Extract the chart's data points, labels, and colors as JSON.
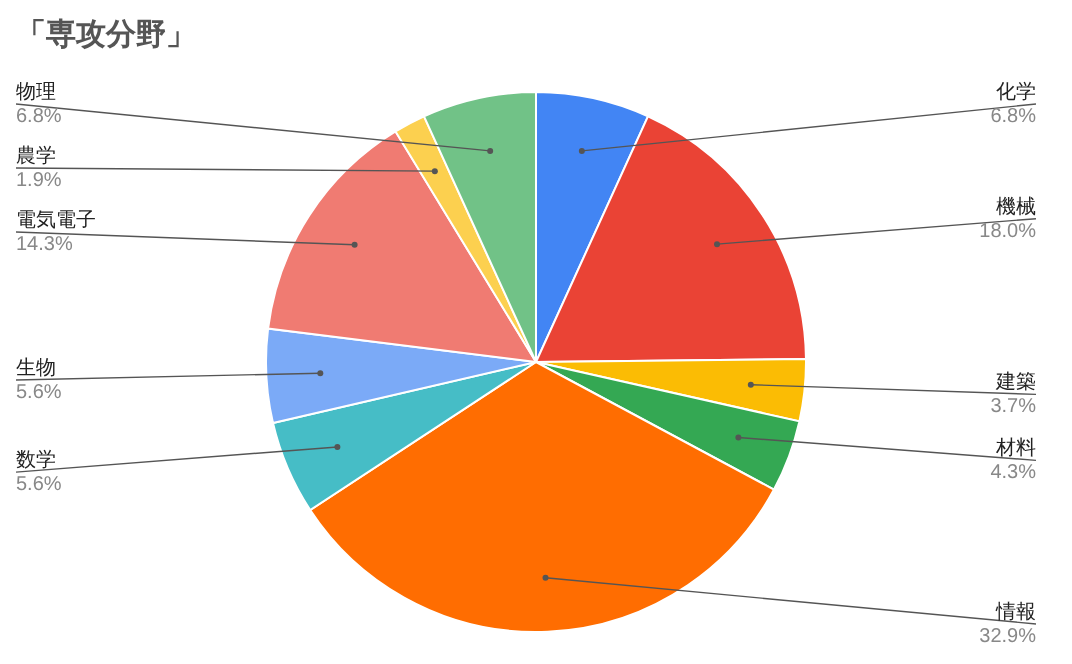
{
  "chart_data": {
    "type": "pie",
    "title": "「専攻分野」",
    "categories": [
      "化学",
      "機械",
      "建築",
      "材料",
      "情報",
      "数学",
      "生物",
      "電気電子",
      "農学",
      "物理"
    ],
    "values": [
      6.8,
      18.0,
      3.7,
      4.3,
      32.9,
      5.6,
      5.6,
      14.3,
      1.9,
      6.8
    ],
    "value_labels": [
      "6.8%",
      "18.0%",
      "3.7%",
      "4.3%",
      "32.9%",
      "5.6%",
      "5.6%",
      "14.3%",
      "1.9%",
      "6.8%"
    ],
    "colors": [
      "#4285f4",
      "#ea4335",
      "#fbbc04",
      "#34a853",
      "#ff6d01",
      "#46bdc6",
      "#7baaf7",
      "#f07b72",
      "#fcd04f",
      "#71c287"
    ]
  }
}
